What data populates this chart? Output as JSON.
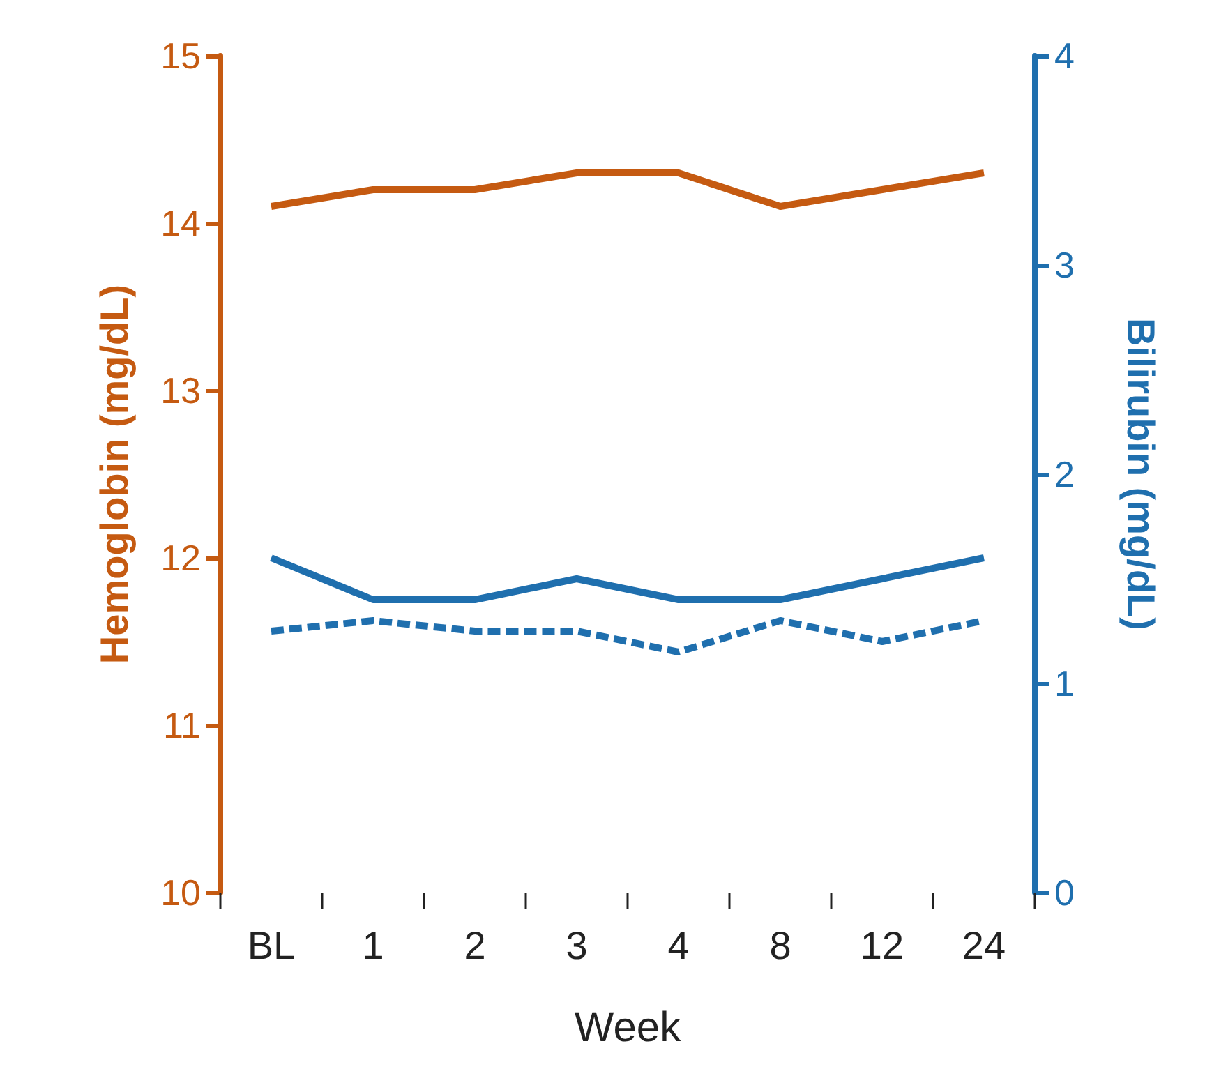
{
  "chart_data": {
    "type": "line",
    "xlabel": "Week",
    "ylabel": "Hemoglobin (mg/dL)",
    "y2label": "Bilirubin (mg/dL)",
    "categories": [
      "BL",
      "1",
      "2",
      "3",
      "4",
      "8",
      "12",
      "24"
    ],
    "series": [
      {
        "color": "#c55a11",
        "line_style": "solid",
        "values": [
          14.1,
          14.2,
          14.2,
          14.3,
          14.3,
          14.1,
          14.2,
          14.3
        ]
      },
      {
        "color": "#1f6fae",
        "line_style": "solid",
        "axis": "y2",
        "values": [
          1.6,
          1.4,
          1.4,
          1.5,
          1.4,
          1.4,
          1.5,
          1.6
        ]
      },
      {
        "color": "#1f6fae",
        "line_style": "dashed",
        "axis": "y2",
        "values": [
          1.25,
          1.3,
          1.25,
          1.25,
          1.15,
          1.3,
          1.2,
          1.3
        ]
      }
    ],
    "ylim": [
      10,
      15
    ],
    "yticks": [
      10,
      11,
      12,
      13,
      14,
      15
    ],
    "y2lim": [
      0,
      4
    ],
    "y2ticks": [
      0,
      1,
      2,
      3,
      4
    ],
    "grid": false
  }
}
